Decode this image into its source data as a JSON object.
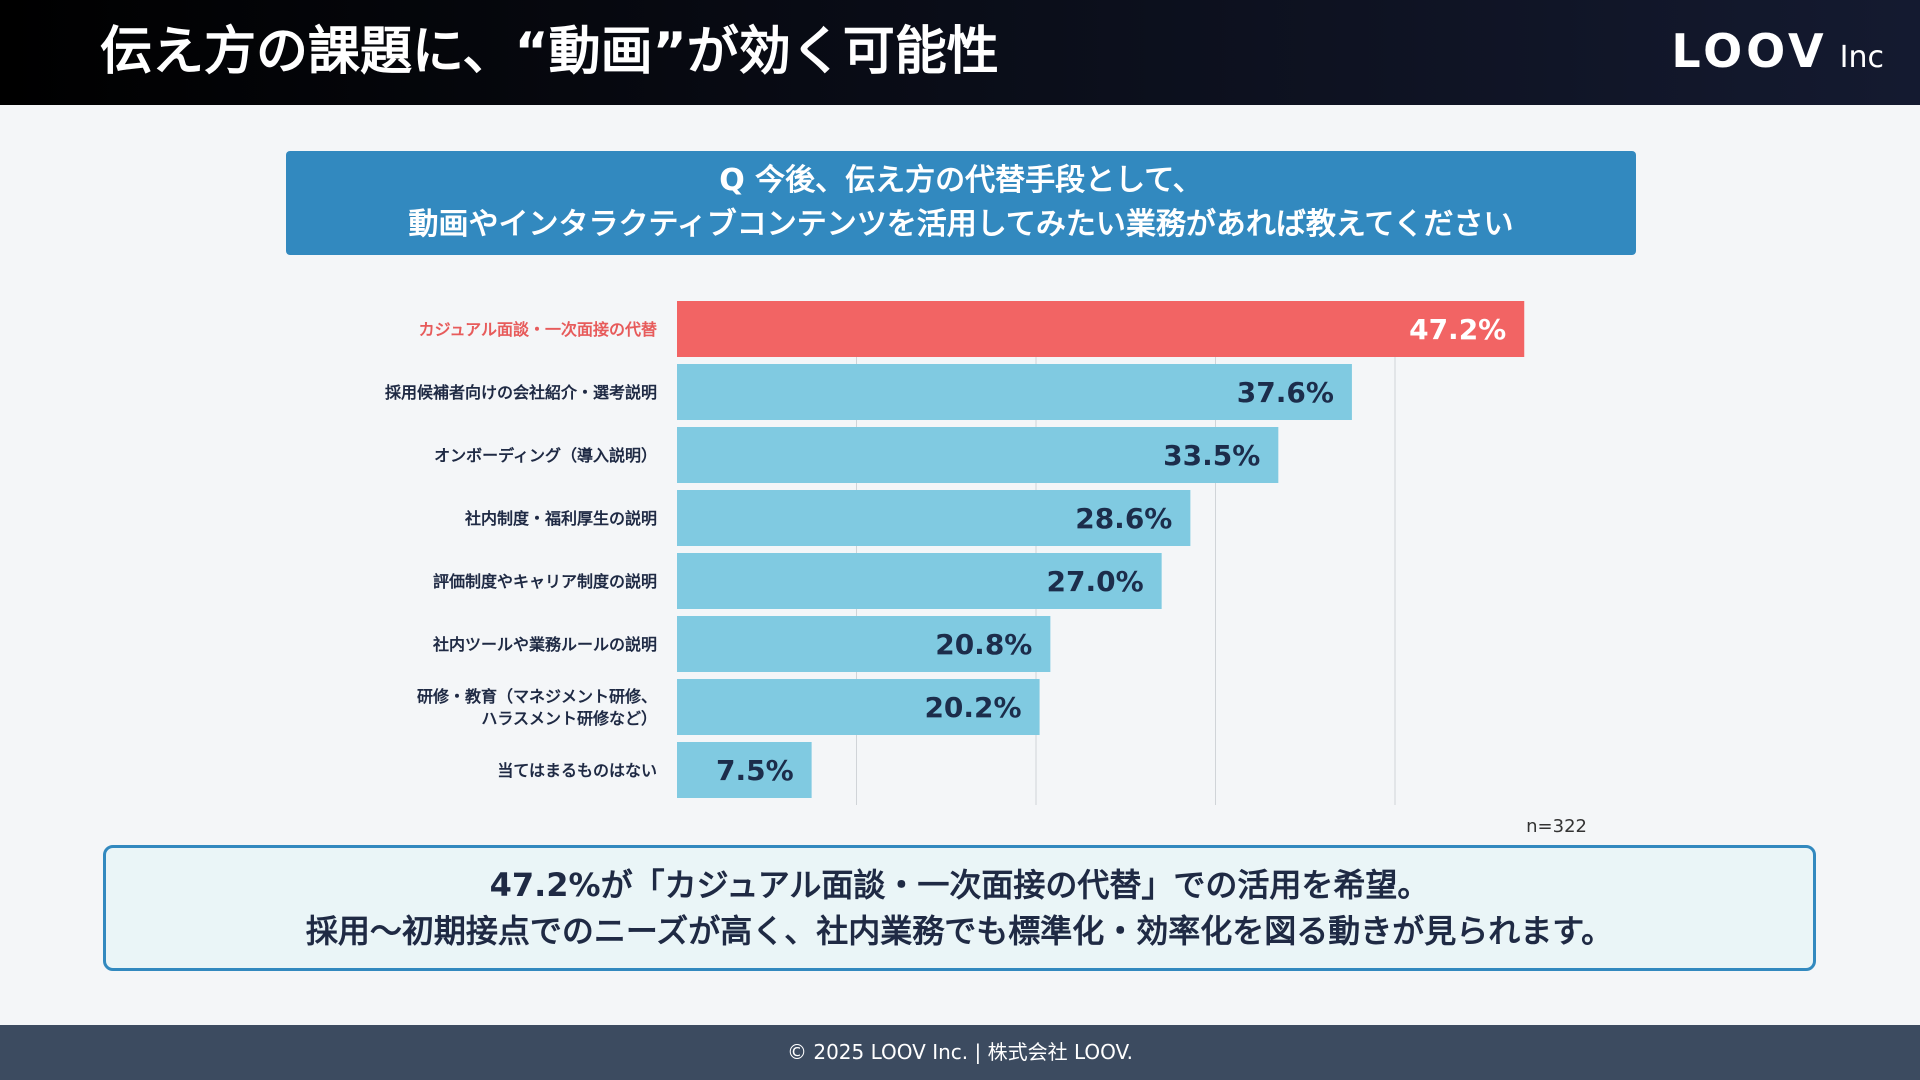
{
  "header": {
    "title": "伝え方の課題に、“動画”が効く可能性",
    "logo_main": "LOOV",
    "logo_sub": "Inc"
  },
  "question": {
    "line1": "Q 今後、伝え方の代替手段として、",
    "line2": "動画やインタラクティブコンテンツを活用してみたい業務があれば教えてください"
  },
  "chart_data": {
    "type": "bar",
    "orientation": "horizontal",
    "categories": [
      [
        "カジュアル面談・一次面接の代替"
      ],
      [
        "採用候補者向けの会社紹介・選考説明"
      ],
      [
        "オンボーディング（導入説明）"
      ],
      [
        "社内制度・福利厚生の説明"
      ],
      [
        "評価制度やキャリア制度の説明"
      ],
      [
        "社内ツールや業務ルールの説明"
      ],
      [
        "研修・教育（マネジメント研修、",
        "ハラスメント研修など）"
      ],
      [
        "当てはまるものはない"
      ]
    ],
    "values": [
      47.2,
      37.6,
      33.5,
      28.6,
      27.0,
      20.8,
      20.2,
      7.5
    ],
    "value_labels": [
      "47.2%",
      "37.6%",
      "33.5%",
      "28.6%",
      "27.0%",
      "20.8%",
      "20.2%",
      "7.5%"
    ],
    "highlight_index": 0,
    "xlim": [
      0,
      50
    ],
    "grid": true,
    "colors": {
      "highlight": "#f26464",
      "bar": "#80cae1",
      "grid": "#d0d4d8"
    },
    "note": "n=322"
  },
  "summary": {
    "line1": "47.2%が「カジュアル面談・一次面接の代替」での活用を希望。",
    "line2": "採用〜初期接点でのニーズが高く、社内業務でも標準化・効率化を図る動きが見られます。"
  },
  "footer": {
    "text": "© 2025 LOOV Inc. | 株式会社 LOOV."
  }
}
